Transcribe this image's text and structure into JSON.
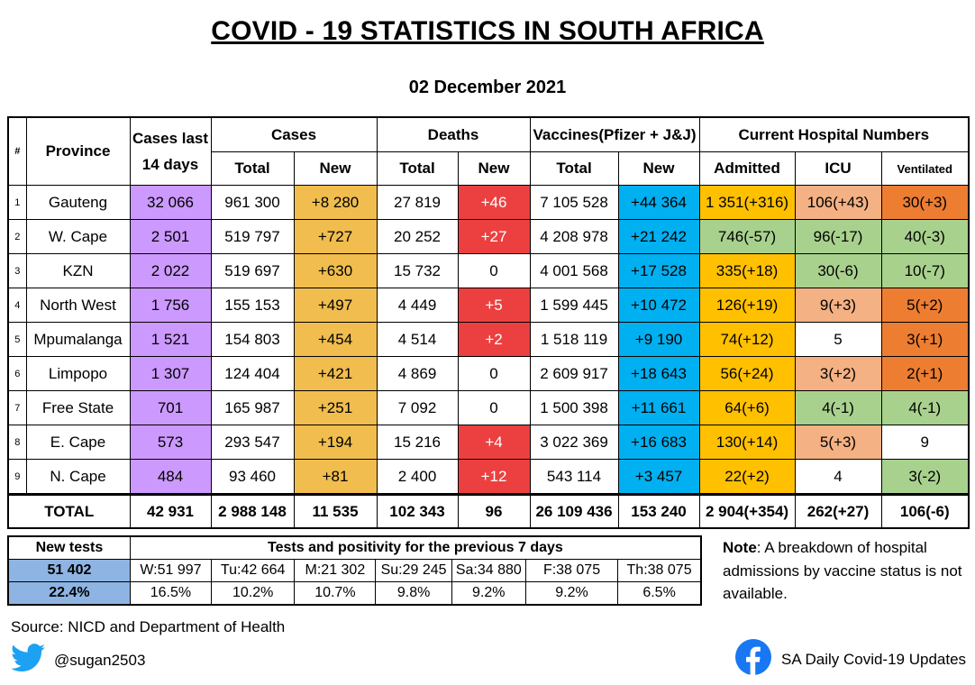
{
  "title": "COVID - 19 STATISTICS IN SOUTH AFRICA",
  "date": "02 December 2021",
  "headers": {
    "num": "#",
    "province": "Province",
    "cases14_l1": "Cases last",
    "cases14_l2": "14 days",
    "cases": "Cases",
    "deaths": "Deaths",
    "vaccines": "Vaccines(Pfizer + J&J)",
    "hospital": "Current Hospital Numbers",
    "total": "Total",
    "new": "New",
    "admitted": "Admitted",
    "icu": "ICU",
    "ventilated": "Ventilated"
  },
  "rows": [
    {
      "num": "1",
      "province": "Gauteng",
      "cases14": "32 066",
      "cases_total": "961 300",
      "cases_new": "+8 280",
      "deaths_total": "27 819",
      "deaths_new": "+46",
      "vacc_total": "7 105 528",
      "vacc_new": "+44 364",
      "admitted": "1 351(+316)",
      "icu": "106(+43)",
      "vent": "30(+3)"
    },
    {
      "num": "2",
      "province": "W. Cape",
      "cases14": "2 501",
      "cases_total": "519 797",
      "cases_new": "+727",
      "deaths_total": "20 252",
      "deaths_new": "+27",
      "vacc_total": "4 208 978",
      "vacc_new": "+21 242",
      "admitted": "746(-57)",
      "icu": "96(-17)",
      "vent": "40(-3)"
    },
    {
      "num": "3",
      "province": "KZN",
      "cases14": "2 022",
      "cases_total": "519 697",
      "cases_new": "+630",
      "deaths_total": "15 732",
      "deaths_new": "0",
      "vacc_total": "4 001 568",
      "vacc_new": "+17 528",
      "admitted": "335(+18)",
      "icu": "30(-6)",
      "vent": "10(-7)"
    },
    {
      "num": "4",
      "province": "North West",
      "cases14": "1 756",
      "cases_total": "155 153",
      "cases_new": "+497",
      "deaths_total": "4 449",
      "deaths_new": "+5",
      "vacc_total": "1 599 445",
      "vacc_new": "+10 472",
      "admitted": "126(+19)",
      "icu": "9(+3)",
      "vent": "5(+2)"
    },
    {
      "num": "5",
      "province": "Mpumalanga",
      "cases14": "1 521",
      "cases_total": "154 803",
      "cases_new": "+454",
      "deaths_total": "4 514",
      "deaths_new": "+2",
      "vacc_total": "1 518 119",
      "vacc_new": "+9 190",
      "admitted": "74(+12)",
      "icu": "5",
      "vent": "3(+1)"
    },
    {
      "num": "6",
      "province": "Limpopo",
      "cases14": "1 307",
      "cases_total": "124 404",
      "cases_new": "+421",
      "deaths_total": "4 869",
      "deaths_new": "0",
      "vacc_total": "2 609 917",
      "vacc_new": "+18 643",
      "admitted": "56(+24)",
      "icu": "3(+2)",
      "vent": "2(+1)"
    },
    {
      "num": "7",
      "province": "Free State",
      "cases14": "701",
      "cases_total": "165 987",
      "cases_new": "+251",
      "deaths_total": "7 092",
      "deaths_new": "0",
      "vacc_total": "1 500 398",
      "vacc_new": "+11 661",
      "admitted": "64(+6)",
      "icu": "4(-1)",
      "vent": "4(-1)"
    },
    {
      "num": "8",
      "province": "E. Cape",
      "cases14": "573",
      "cases_total": "293 547",
      "cases_new": "+194",
      "deaths_total": "15 216",
      "deaths_new": "+4",
      "vacc_total": "3 022 369",
      "vacc_new": "+16 683",
      "admitted": "130(+14)",
      "icu": "5(+3)",
      "vent": "9"
    },
    {
      "num": "9",
      "province": "N. Cape",
      "cases14": "484",
      "cases_total": "93 460",
      "cases_new": "+81",
      "deaths_total": "2 400",
      "deaths_new": "+12",
      "vacc_total": "543 114",
      "vacc_new": "+3 457",
      "admitted": "22(+2)",
      "icu": "4",
      "vent": "3(-2)"
    }
  ],
  "total": {
    "label": "TOTAL",
    "cases14": "42 931",
    "cases_total": "2 988 148",
    "cases_new": "11 535",
    "deaths_total": "102 343",
    "deaths_new": "96",
    "vacc_total": "26 109 436",
    "vacc_new": "153 240",
    "admitted": "2 904(+354)",
    "icu": "262(+27)",
    "vent": "106(-6)"
  },
  "tests": {
    "new_tests_label": "New tests",
    "period_label": "Tests and positivity for the previous 7 days",
    "new_tests": "51 402",
    "positivity": "22.4%",
    "days": [
      {
        "tests": "W:51 997",
        "pos": "16.5%"
      },
      {
        "tests": "Tu:42 664",
        "pos": "10.2%"
      },
      {
        "tests": "M:21 302",
        "pos": "10.7%"
      },
      {
        "tests": "Su:29 245",
        "pos": "9.8%"
      },
      {
        "tests": "Sa:34 880",
        "pos": "9.2%"
      },
      {
        "tests": "F:38 075",
        "pos": "9.2%"
      },
      {
        "tests": "Th:38 075",
        "pos": "6.5%"
      }
    ]
  },
  "note": {
    "label": "Note",
    "text": ": A breakdown of hospital admissions by vaccine status is not available."
  },
  "source": "Source: NICD and Department of Health",
  "twitter": {
    "handle": "@sugan2503",
    "icon": "twitter-icon"
  },
  "facebook": {
    "page": "SA Daily Covid-19 Updates",
    "icon": "facebook-icon"
  },
  "colors": {
    "purple": "#cc99ff",
    "orange": "#f0bd4e",
    "red": "#ec4040",
    "blue": "#00b0f0",
    "amber": "#ffc000",
    "green": "#a9d18e",
    "salmon": "#f4b183",
    "dark_orange": "#ed7d31",
    "light_blue": "#8eb4e3"
  },
  "cell_colors": {
    "admitted": [
      "amber",
      "green",
      "amber",
      "amber",
      "amber",
      "amber",
      "amber",
      "amber",
      "amber"
    ],
    "icu": [
      "salmon",
      "green",
      "green",
      "salmon",
      "",
      "salmon",
      "green",
      "salmon",
      ""
    ],
    "vent": [
      "dorange",
      "green",
      "green",
      "dorange",
      "dorange",
      "dorange",
      "green",
      "",
      "green"
    ]
  }
}
